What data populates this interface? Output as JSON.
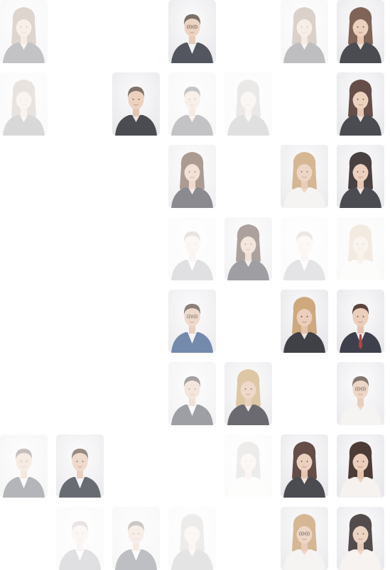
{
  "accent_background": "#f1f1f3",
  "grid": {
    "columns": 7,
    "rows": 8,
    "cells": [
      {
        "r": 0,
        "c": 0,
        "opacity": 0.28,
        "hair": "long",
        "hairColor": "#8a6a55",
        "outfit": "dark",
        "gender": "f"
      },
      {
        "r": 0,
        "c": 3,
        "opacity": 0.8,
        "hair": "short",
        "hairColor": "#5a4a40",
        "outfit": "suit",
        "gender": "m",
        "glasses": true
      },
      {
        "r": 0,
        "c": 5,
        "opacity": 0.3,
        "hair": "long",
        "hairColor": "#8a6a55",
        "outfit": "dark",
        "gender": "f"
      },
      {
        "r": 0,
        "c": 6,
        "opacity": 0.85,
        "hair": "long",
        "hairColor": "#6a4a3a",
        "outfit": "dark",
        "gender": "f"
      },
      {
        "r": 1,
        "c": 0,
        "opacity": 0.18,
        "hair": "long",
        "hairColor": "#8a6a55",
        "outfit": "dark",
        "gender": "f"
      },
      {
        "r": 1,
        "c": 2,
        "opacity": 0.85,
        "hair": "short",
        "hairColor": "#6a5a50",
        "outfit": "dark",
        "gender": "f"
      },
      {
        "r": 1,
        "c": 3,
        "opacity": 0.28,
        "hair": "short",
        "hairColor": "#3a3030",
        "outfit": "dark",
        "gender": "f"
      },
      {
        "r": 1,
        "c": 4,
        "opacity": 0.14,
        "hair": "long",
        "hairColor": "#7a6a60",
        "outfit": "dark",
        "gender": "f"
      },
      {
        "r": 1,
        "c": 6,
        "opacity": 0.85,
        "hair": "long",
        "hairColor": "#4a3028",
        "outfit": "dark",
        "gender": "f"
      },
      {
        "r": 2,
        "c": 3,
        "opacity": 0.55,
        "hair": "long",
        "hairColor": "#6a4a3a",
        "outfit": "dark",
        "gender": "f"
      },
      {
        "r": 2,
        "c": 5,
        "opacity": 0.75,
        "hair": "long",
        "hairColor": "#c8a070",
        "outfit": "light",
        "gender": "f"
      },
      {
        "r": 2,
        "c": 6,
        "opacity": 0.85,
        "hair": "long",
        "hairColor": "#2a2020",
        "outfit": "dark",
        "gender": "f"
      },
      {
        "r": 3,
        "c": 3,
        "opacity": 0.14,
        "hair": "short",
        "hairColor": "#5a4a40",
        "outfit": "suit",
        "gender": "m"
      },
      {
        "r": 3,
        "c": 4,
        "opacity": 0.45,
        "hair": "long",
        "hairColor": "#4a3028",
        "outfit": "dark",
        "gender": "f"
      },
      {
        "r": 3,
        "c": 5,
        "opacity": 0.12,
        "hair": "short",
        "hairColor": "#5a4a40",
        "outfit": "suit",
        "gender": "m"
      },
      {
        "r": 3,
        "c": 6,
        "opacity": 0.2,
        "hair": "long",
        "hairColor": "#c8a070",
        "outfit": "light",
        "gender": "f"
      },
      {
        "r": 4,
        "c": 3,
        "opacity": 0.7,
        "hair": "short",
        "hairColor": "#5a4a40",
        "outfit": "blue",
        "gender": "m",
        "glasses": true
      },
      {
        "r": 4,
        "c": 5,
        "opacity": 0.9,
        "hair": "long",
        "hairColor": "#c8a070",
        "outfit": "dark",
        "gender": "f"
      },
      {
        "r": 4,
        "c": 6,
        "opacity": 0.9,
        "hair": "short",
        "hairColor": "#4a3028",
        "outfit": "suit",
        "gender": "m",
        "tie": "#b03030"
      },
      {
        "r": 5,
        "c": 3,
        "opacity": 0.45,
        "hair": "short",
        "hairColor": "#3a3030",
        "outfit": "suit",
        "gender": "m"
      },
      {
        "r": 5,
        "c": 4,
        "opacity": 0.7,
        "hair": "long",
        "hairColor": "#d0b080",
        "outfit": "dark",
        "gender": "f"
      },
      {
        "r": 5,
        "c": 6,
        "opacity": 0.75,
        "hair": "short",
        "hairColor": "#5a4a40",
        "outfit": "light",
        "gender": "f",
        "glasses": true
      },
      {
        "r": 6,
        "c": 0,
        "opacity": 0.35,
        "hair": "short",
        "hairColor": "#5a4a40",
        "outfit": "suit",
        "gender": "m"
      },
      {
        "r": 6,
        "c": 1,
        "opacity": 0.7,
        "hair": "short",
        "hairColor": "#6a5a50",
        "outfit": "suit",
        "gender": "m"
      },
      {
        "r": 6,
        "c": 4,
        "opacity": 0.12,
        "hair": "long",
        "hairColor": "#7a6a60",
        "outfit": "light",
        "gender": "f"
      },
      {
        "r": 6,
        "c": 5,
        "opacity": 0.85,
        "hair": "long",
        "hairColor": "#4a3028",
        "outfit": "dark",
        "gender": "f"
      },
      {
        "r": 6,
        "c": 6,
        "opacity": 0.9,
        "hair": "long",
        "hairColor": "#3a2820",
        "outfit": "light",
        "gender": "f"
      },
      {
        "r": 7,
        "c": 1,
        "opacity": 0.14,
        "hair": "short",
        "hairColor": "#5a4a40",
        "outfit": "suit",
        "gender": "m"
      },
      {
        "r": 7,
        "c": 2,
        "opacity": 0.3,
        "hair": "short",
        "hairColor": "#5a4a40",
        "outfit": "suit",
        "gender": "m"
      },
      {
        "r": 7,
        "c": 3,
        "opacity": 0.12,
        "hair": "long",
        "hairColor": "#7a6a60",
        "outfit": "dark",
        "gender": "f"
      },
      {
        "r": 7,
        "c": 5,
        "opacity": 0.75,
        "hair": "long",
        "hairColor": "#c8a070",
        "outfit": "light",
        "gender": "f",
        "glasses": true
      },
      {
        "r": 7,
        "c": 6,
        "opacity": 0.8,
        "hair": "long",
        "hairColor": "#2a2020",
        "outfit": "light",
        "gender": "f"
      }
    ]
  }
}
